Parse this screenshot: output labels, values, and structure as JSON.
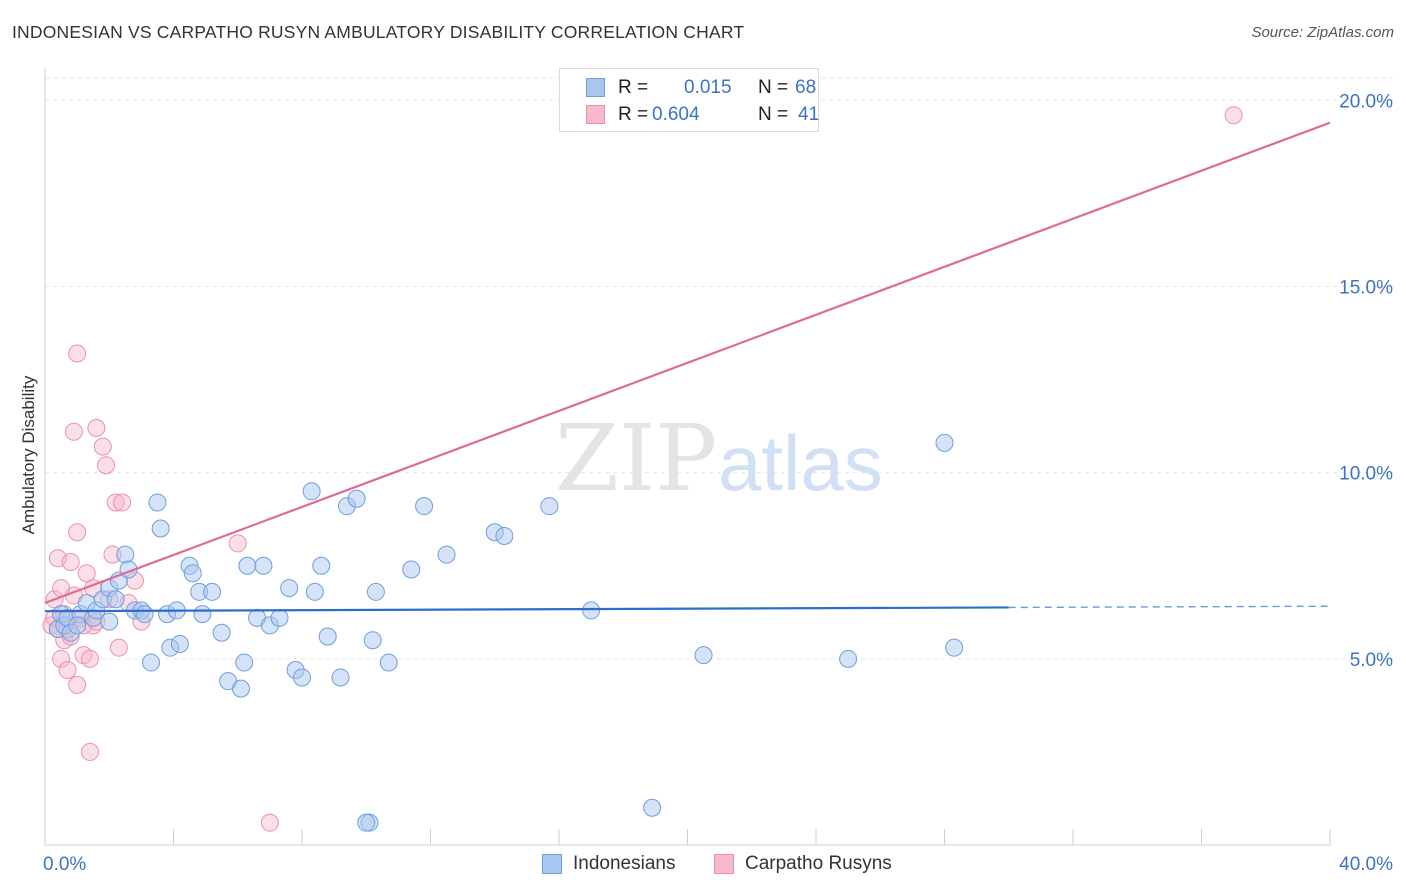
{
  "header": {
    "title": "INDONESIAN VS CARPATHO RUSYN AMBULATORY DISABILITY CORRELATION CHART",
    "source": "Source: ZipAtlas.com"
  },
  "watermark": {
    "part1": "ZIP",
    "part2": "atlas"
  },
  "stats": {
    "row1": {
      "r_label": "R =",
      "r_value": "0.015",
      "n_label": "N =",
      "n_value": "68"
    },
    "row2": {
      "r_label": "R =",
      "r_value": "0.604",
      "n_label": "N =",
      "n_value": "41"
    }
  },
  "legend": {
    "series1": "Indonesians",
    "series2": "Carpatho Rusyns"
  },
  "colors": {
    "blue_fill": "#a9c8f0",
    "blue_stroke": "#6f9fdc",
    "blue_line": "#2a6fcf",
    "pink_fill": "#f7b9cc",
    "pink_stroke": "#ef8fae",
    "pink_line": "#e06a95",
    "axis_text": "#3b73c5"
  },
  "chart_data": {
    "type": "scatter",
    "title": "INDONESIAN VS CARPATHO RUSYN AMBULATORY DISABILITY CORRELATION CHART",
    "xlabel": "",
    "ylabel": "Ambulatory Disability",
    "xlim": [
      0,
      40
    ],
    "ylim": [
      0,
      20.6
    ],
    "x_ticks": [
      0,
      40
    ],
    "x_tick_labels": [
      "0.0%",
      "40.0%"
    ],
    "y_ticks": [
      5,
      10,
      15,
      20
    ],
    "y_tick_labels": [
      "5.0%",
      "10.0%",
      "15.0%",
      "20.0%"
    ],
    "series": [
      {
        "name": "Indonesians",
        "r": 0.015,
        "n": 68,
        "trend": {
          "x0": 0,
          "y0": 6.28,
          "x1": 30,
          "y1": 6.38,
          "dashed_to": 40
        },
        "points": [
          [
            0.4,
            5.8
          ],
          [
            0.5,
            6.2
          ],
          [
            0.6,
            5.9
          ],
          [
            0.7,
            6.1
          ],
          [
            0.8,
            5.7
          ],
          [
            1.1,
            6.2
          ],
          [
            1.3,
            6.5
          ],
          [
            1.5,
            6.1
          ],
          [
            1.6,
            6.3
          ],
          [
            1.8,
            6.6
          ],
          [
            2.0,
            6.9
          ],
          [
            2.2,
            6.6
          ],
          [
            2.3,
            7.1
          ],
          [
            2.5,
            7.8
          ],
          [
            2.6,
            7.4
          ],
          [
            2.8,
            6.3
          ],
          [
            3.0,
            6.3
          ],
          [
            3.1,
            6.2
          ],
          [
            3.3,
            4.9
          ],
          [
            3.5,
            9.2
          ],
          [
            3.6,
            8.5
          ],
          [
            3.8,
            6.2
          ],
          [
            3.9,
            5.3
          ],
          [
            4.1,
            6.3
          ],
          [
            4.2,
            5.4
          ],
          [
            4.5,
            7.5
          ],
          [
            4.6,
            7.3
          ],
          [
            4.8,
            6.8
          ],
          [
            4.9,
            6.2
          ],
          [
            5.2,
            6.8
          ],
          [
            5.5,
            5.7
          ],
          [
            5.7,
            4.4
          ],
          [
            6.1,
            4.2
          ],
          [
            6.2,
            4.9
          ],
          [
            6.3,
            7.5
          ],
          [
            6.6,
            6.1
          ],
          [
            6.8,
            7.5
          ],
          [
            7.0,
            5.9
          ],
          [
            7.3,
            6.1
          ],
          [
            7.6,
            6.9
          ],
          [
            7.8,
            4.7
          ],
          [
            8.0,
            4.5
          ],
          [
            8.3,
            9.5
          ],
          [
            8.4,
            6.8
          ],
          [
            8.6,
            7.5
          ],
          [
            8.8,
            5.6
          ],
          [
            9.2,
            4.5
          ],
          [
            9.4,
            9.1
          ],
          [
            9.7,
            9.3
          ],
          [
            10.1,
            0.6
          ],
          [
            10.2,
            5.5
          ],
          [
            10.3,
            6.8
          ],
          [
            10.7,
            4.9
          ],
          [
            11.4,
            7.4
          ],
          [
            11.8,
            9.1
          ],
          [
            12.5,
            7.8
          ],
          [
            14.0,
            8.4
          ],
          [
            14.3,
            8.3
          ],
          [
            15.7,
            9.1
          ],
          [
            17.0,
            6.3
          ],
          [
            18.9,
            1.0
          ],
          [
            20.5,
            5.1
          ],
          [
            25.0,
            5.0
          ],
          [
            28.0,
            10.8
          ],
          [
            28.3,
            5.3
          ],
          [
            10.0,
            0.6
          ],
          [
            2.0,
            6.0
          ],
          [
            1.0,
            5.9
          ]
        ]
      },
      {
        "name": "Carpatho Rusyns",
        "r": 0.604,
        "n": 41,
        "trend": {
          "x0": 0,
          "y0": 6.5,
          "x1": 40,
          "y1": 19.4
        },
        "points": [
          [
            0.2,
            5.9
          ],
          [
            0.3,
            6.1
          ],
          [
            0.3,
            6.6
          ],
          [
            0.4,
            5.8
          ],
          [
            0.4,
            7.7
          ],
          [
            0.5,
            5.0
          ],
          [
            0.6,
            5.5
          ],
          [
            0.7,
            4.7
          ],
          [
            0.8,
            7.6
          ],
          [
            0.9,
            6.7
          ],
          [
            0.9,
            11.1
          ],
          [
            1.0,
            13.2
          ],
          [
            1.1,
            6.1
          ],
          [
            1.2,
            5.1
          ],
          [
            1.3,
            7.3
          ],
          [
            1.4,
            5.0
          ],
          [
            1.5,
            6.9
          ],
          [
            1.6,
            11.2
          ],
          [
            1.8,
            10.7
          ],
          [
            1.9,
            10.2
          ],
          [
            2.0,
            6.6
          ],
          [
            2.1,
            7.8
          ],
          [
            2.2,
            9.2
          ],
          [
            2.4,
            9.2
          ],
          [
            2.6,
            6.5
          ],
          [
            2.8,
            7.1
          ],
          [
            3.0,
            6.0
          ],
          [
            0.6,
            6.2
          ],
          [
            1.0,
            4.3
          ],
          [
            1.4,
            2.5
          ],
          [
            1.0,
            8.4
          ],
          [
            0.5,
            6.9
          ],
          [
            1.5,
            5.9
          ],
          [
            0.8,
            5.6
          ],
          [
            1.2,
            5.9
          ],
          [
            2.3,
            5.3
          ],
          [
            6.0,
            8.1
          ],
          [
            7.0,
            0.6
          ],
          [
            37.0,
            19.6
          ],
          [
            0.7,
            5.8
          ],
          [
            1.6,
            6.0
          ]
        ]
      }
    ]
  }
}
